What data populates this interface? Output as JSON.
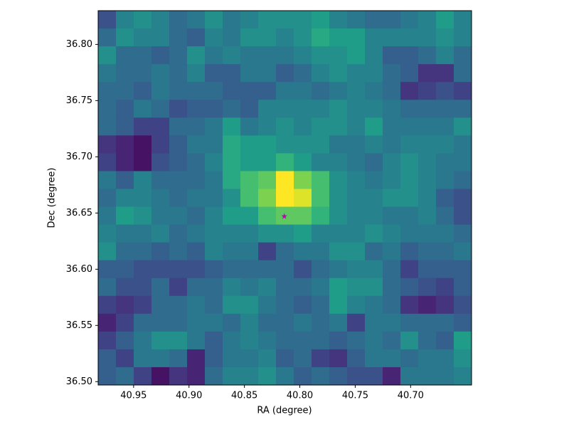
{
  "chart_data": {
    "type": "heatmap",
    "colormap": "viridis",
    "origin": "upper",
    "x_label": "RA (degree)",
    "y_label": "Dec (degree)",
    "xlim": [
      40.982,
      40.645
    ],
    "ylim": [
      36.497,
      36.83
    ],
    "xticks": [
      40.95,
      {
        "value": 40.9,
        "label": "40.90"
      },
      40.85,
      {
        "value": 40.8,
        "label": "40.80"
      },
      40.75,
      {
        "value": 40.7,
        "label": "40.70"
      }
    ],
    "yticks": [
      {
        "value": 36.5,
        "label": "36.50"
      },
      36.55,
      {
        "value": 36.6,
        "label": "36.60"
      },
      36.65,
      {
        "value": 36.7,
        "label": "36.70"
      },
      36.75,
      {
        "value": 36.8,
        "label": "36.80"
      }
    ],
    "z": [
      [
        0.25,
        0.45,
        0.5,
        0.45,
        0.35,
        0.4,
        0.5,
        0.4,
        0.45,
        0.5,
        0.5,
        0.5,
        0.55,
        0.45,
        0.4,
        0.35,
        0.35,
        0.4,
        0.45,
        0.55,
        0.45
      ],
      [
        0.35,
        0.5,
        0.45,
        0.45,
        0.35,
        0.3,
        0.45,
        0.4,
        0.5,
        0.5,
        0.45,
        0.5,
        0.6,
        0.55,
        0.55,
        0.45,
        0.45,
        0.45,
        0.45,
        0.5,
        0.45
      ],
      [
        0.5,
        0.35,
        0.35,
        0.3,
        0.35,
        0.5,
        0.4,
        0.45,
        0.4,
        0.4,
        0.4,
        0.45,
        0.5,
        0.5,
        0.55,
        0.45,
        0.3,
        0.3,
        0.35,
        0.45,
        0.35
      ],
      [
        0.4,
        0.35,
        0.35,
        0.4,
        0.35,
        0.45,
        0.3,
        0.3,
        0.4,
        0.4,
        0.3,
        0.35,
        0.45,
        0.5,
        0.45,
        0.45,
        0.35,
        0.3,
        0.15,
        0.15,
        0.35
      ],
      [
        0.35,
        0.35,
        0.3,
        0.4,
        0.35,
        0.35,
        0.35,
        0.3,
        0.3,
        0.3,
        0.4,
        0.4,
        0.35,
        0.4,
        0.45,
        0.4,
        0.35,
        0.15,
        0.2,
        0.25,
        0.2
      ],
      [
        0.35,
        0.3,
        0.4,
        0.35,
        0.25,
        0.3,
        0.3,
        0.35,
        0.3,
        0.45,
        0.45,
        0.45,
        0.45,
        0.5,
        0.45,
        0.45,
        0.4,
        0.35,
        0.35,
        0.35,
        0.35
      ],
      [
        0.35,
        0.3,
        0.2,
        0.2,
        0.35,
        0.35,
        0.4,
        0.55,
        0.4,
        0.45,
        0.5,
        0.45,
        0.5,
        0.5,
        0.45,
        0.55,
        0.4,
        0.4,
        0.4,
        0.4,
        0.5
      ],
      [
        0.15,
        0.1,
        0.05,
        0.2,
        0.3,
        0.4,
        0.4,
        0.6,
        0.55,
        0.55,
        0.5,
        0.5,
        0.5,
        0.4,
        0.4,
        0.45,
        0.4,
        0.45,
        0.45,
        0.45,
        0.4
      ],
      [
        0.2,
        0.1,
        0.05,
        0.25,
        0.3,
        0.35,
        0.45,
        0.6,
        0.55,
        0.55,
        0.65,
        0.55,
        0.45,
        0.45,
        0.4,
        0.35,
        0.45,
        0.5,
        0.45,
        0.4,
        0.4
      ],
      [
        0.4,
        0.3,
        0.45,
        0.35,
        0.35,
        0.35,
        0.4,
        0.6,
        0.7,
        0.75,
        1.0,
        0.8,
        0.7,
        0.5,
        0.45,
        0.4,
        0.45,
        0.5,
        0.45,
        0.4,
        0.35
      ],
      [
        0.35,
        0.45,
        0.45,
        0.4,
        0.35,
        0.4,
        0.4,
        0.5,
        0.7,
        0.8,
        1.0,
        0.95,
        0.7,
        0.5,
        0.45,
        0.45,
        0.5,
        0.5,
        0.45,
        0.3,
        0.25
      ],
      [
        0.4,
        0.55,
        0.5,
        0.4,
        0.4,
        0.35,
        0.45,
        0.55,
        0.55,
        0.7,
        0.75,
        0.75,
        0.65,
        0.5,
        0.45,
        0.45,
        0.4,
        0.4,
        0.45,
        0.35,
        0.25
      ],
      [
        0.45,
        0.4,
        0.4,
        0.45,
        0.35,
        0.4,
        0.45,
        0.45,
        0.45,
        0.5,
        0.5,
        0.55,
        0.45,
        0.45,
        0.45,
        0.5,
        0.45,
        0.4,
        0.4,
        0.4,
        0.35
      ],
      [
        0.5,
        0.35,
        0.35,
        0.3,
        0.35,
        0.3,
        0.45,
        0.4,
        0.4,
        0.2,
        0.35,
        0.4,
        0.4,
        0.5,
        0.5,
        0.35,
        0.4,
        0.3,
        0.35,
        0.35,
        0.4
      ],
      [
        0.3,
        0.3,
        0.25,
        0.25,
        0.25,
        0.25,
        0.3,
        0.35,
        0.35,
        0.35,
        0.35,
        0.25,
        0.35,
        0.4,
        0.45,
        0.45,
        0.35,
        0.2,
        0.3,
        0.3,
        0.3
      ],
      [
        0.35,
        0.25,
        0.25,
        0.35,
        0.2,
        0.35,
        0.35,
        0.45,
        0.4,
        0.45,
        0.35,
        0.35,
        0.4,
        0.55,
        0.5,
        0.5,
        0.35,
        0.3,
        0.25,
        0.2,
        0.3
      ],
      [
        0.2,
        0.15,
        0.2,
        0.35,
        0.35,
        0.4,
        0.35,
        0.5,
        0.5,
        0.4,
        0.35,
        0.3,
        0.35,
        0.55,
        0.45,
        0.4,
        0.35,
        0.15,
        0.1,
        0.15,
        0.25
      ],
      [
        0.1,
        0.2,
        0.35,
        0.35,
        0.35,
        0.4,
        0.4,
        0.35,
        0.45,
        0.35,
        0.35,
        0.4,
        0.35,
        0.4,
        0.2,
        0.4,
        0.4,
        0.35,
        0.35,
        0.35,
        0.3
      ],
      [
        0.2,
        0.3,
        0.4,
        0.5,
        0.5,
        0.4,
        0.3,
        0.4,
        0.45,
        0.4,
        0.35,
        0.35,
        0.35,
        0.3,
        0.35,
        0.4,
        0.35,
        0.5,
        0.35,
        0.3,
        0.55
      ],
      [
        0.3,
        0.2,
        0.4,
        0.4,
        0.35,
        0.1,
        0.3,
        0.4,
        0.4,
        0.45,
        0.3,
        0.35,
        0.2,
        0.15,
        0.3,
        0.4,
        0.4,
        0.35,
        0.4,
        0.4,
        0.5
      ],
      [
        0.3,
        0.35,
        0.2,
        0.05,
        0.15,
        0.1,
        0.35,
        0.45,
        0.45,
        0.5,
        0.4,
        0.3,
        0.35,
        0.3,
        0.25,
        0.25,
        0.1,
        0.4,
        0.4,
        0.4,
        0.45
      ]
    ],
    "markers": [
      {
        "x": 40.814,
        "y": 36.647,
        "color": "#bf00bf"
      }
    ]
  }
}
